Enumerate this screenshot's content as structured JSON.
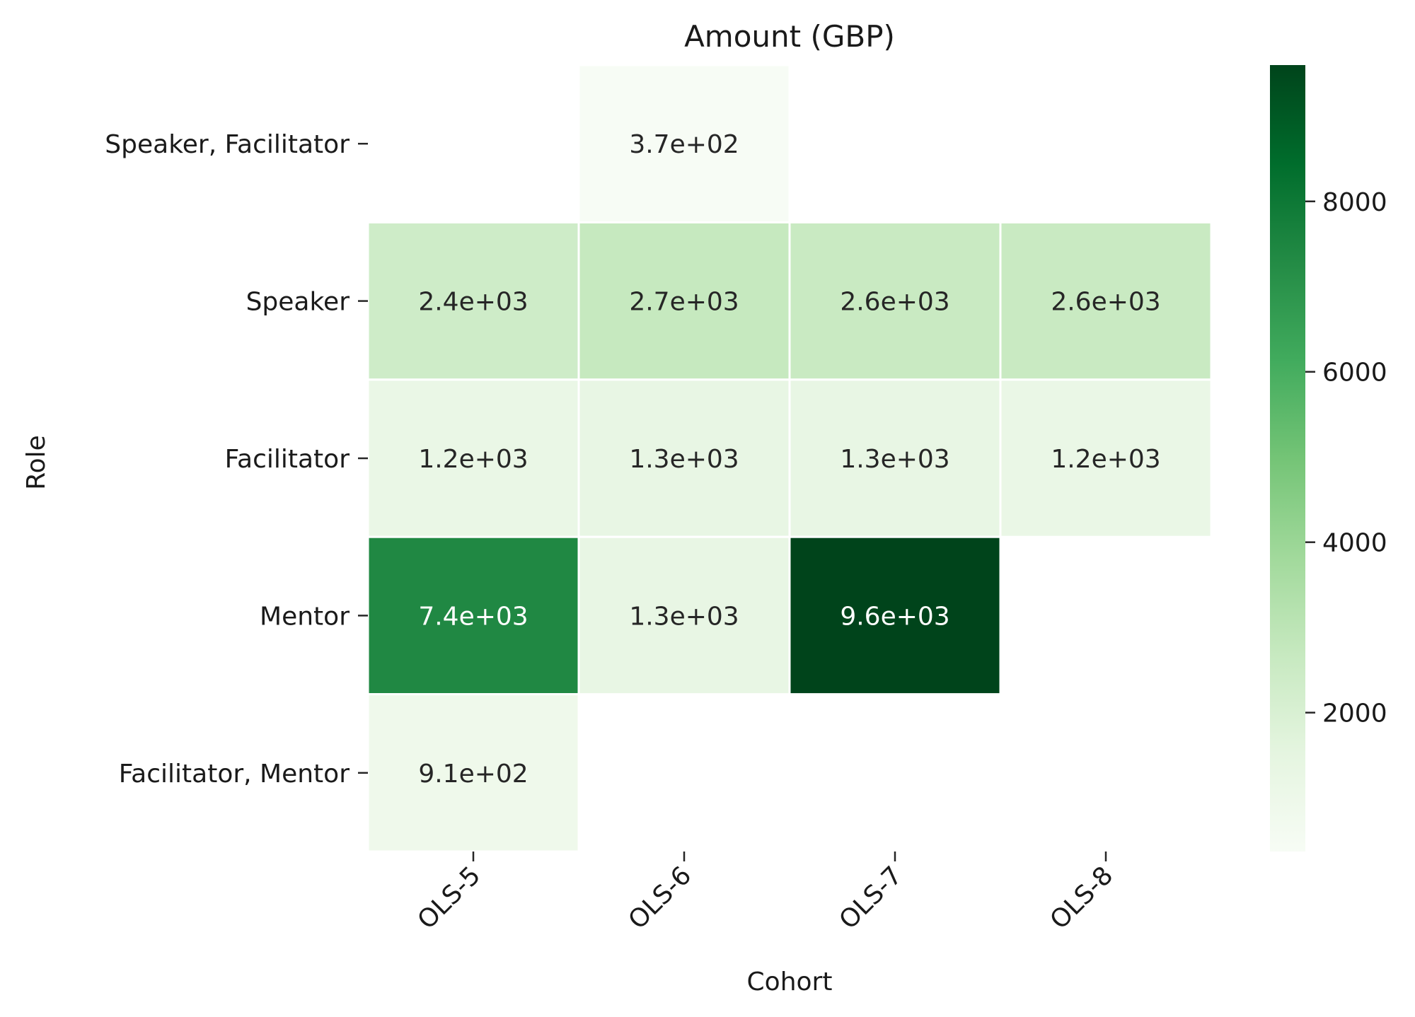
{
  "chart_data": {
    "type": "heatmap",
    "title": "Amount (GBP)",
    "xlabel": "Cohort",
    "ylabel": "Role",
    "x_categories": [
      "OLS-5",
      "OLS-6",
      "OLS-7",
      "OLS-8"
    ],
    "y_categories": [
      "Speaker, Facilitator",
      "Speaker",
      "Facilitator",
      "Mentor",
      "Facilitator, Mentor"
    ],
    "values": [
      [
        null,
        370,
        null,
        null
      ],
      [
        2400,
        2700,
        2600,
        2600
      ],
      [
        1200,
        1300,
        1300,
        1200
      ],
      [
        7400,
        1300,
        9600,
        null
      ],
      [
        910,
        null,
        null,
        null
      ]
    ],
    "cell_labels": [
      [
        null,
        "3.7e+02",
        null,
        null
      ],
      [
        "2.4e+03",
        "2.7e+03",
        "2.6e+03",
        "2.6e+03"
      ],
      [
        "1.2e+03",
        "1.3e+03",
        "1.3e+03",
        "1.2e+03"
      ],
      [
        "7.4e+03",
        "1.3e+03",
        "9.6e+03",
        null
      ],
      [
        "9.1e+02",
        null,
        null,
        null
      ]
    ],
    "colormap": "Greens",
    "color_range": [
      370,
      9600
    ],
    "colorbar_ticks": [
      2000,
      4000,
      6000,
      8000
    ],
    "colorbar_tick_labels": [
      "2000",
      "4000",
      "6000",
      "8000"
    ]
  }
}
